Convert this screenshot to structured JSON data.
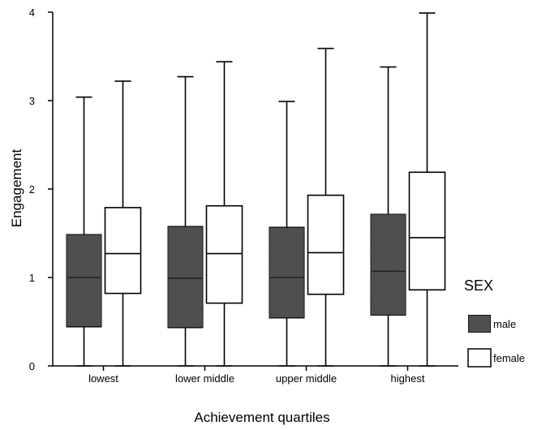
{
  "chart_data": {
    "type": "boxplot",
    "xlabel": "Achievement quartiles",
    "ylabel": "Engagement",
    "ylim": [
      0,
      4
    ],
    "yticks": [
      0,
      1,
      2,
      3,
      4
    ],
    "categories": [
      "lowest",
      "lower middle",
      "upper middle",
      "highest"
    ],
    "legend": {
      "title": "SEX",
      "position": "right",
      "entries": [
        "male",
        "female"
      ]
    },
    "series": [
      {
        "name": "male",
        "color": "#555555",
        "boxes": [
          {
            "min": 0,
            "q1": 0.44,
            "median": 1.0,
            "q3": 1.49,
            "max": 3.04
          },
          {
            "min": 0,
            "q1": 0.43,
            "median": 0.99,
            "q3": 1.58,
            "max": 3.27
          },
          {
            "min": 0,
            "q1": 0.54,
            "median": 1.0,
            "q3": 1.57,
            "max": 2.99
          },
          {
            "min": 0,
            "q1": 0.57,
            "median": 1.07,
            "q3": 1.72,
            "max": 3.38
          }
        ]
      },
      {
        "name": "female",
        "color": "#ffffff",
        "boxes": [
          {
            "min": 0,
            "q1": 0.82,
            "median": 1.27,
            "q3": 1.79,
            "max": 3.22
          },
          {
            "min": 0,
            "q1": 0.71,
            "median": 1.27,
            "q3": 1.81,
            "max": 3.44
          },
          {
            "min": 0,
            "q1": 0.81,
            "median": 1.28,
            "q3": 1.93,
            "max": 3.59
          },
          {
            "min": 0,
            "q1": 0.86,
            "median": 1.45,
            "q3": 2.19,
            "max": 3.99
          }
        ]
      }
    ]
  }
}
